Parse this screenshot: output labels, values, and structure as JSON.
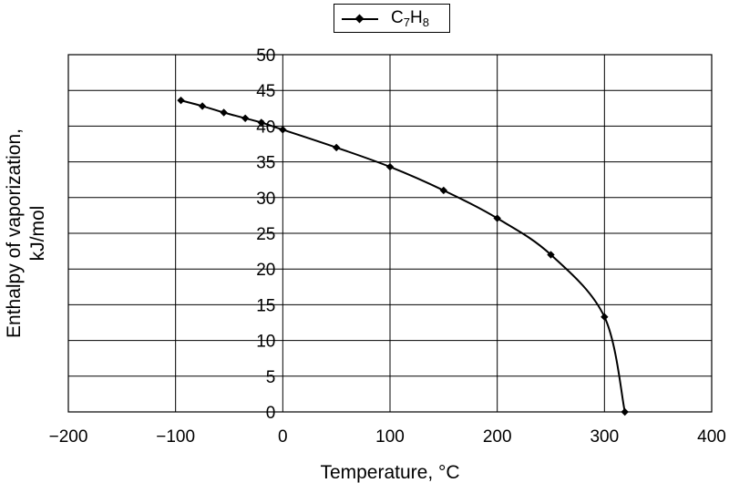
{
  "chart_data": {
    "type": "line",
    "title": "",
    "xlabel": "Temperature, °C",
    "ylabel_line1": "Enthalpy of vaporization,",
    "ylabel_line2": "kJ/mol",
    "xlim": [
      -200,
      400
    ],
    "ylim": [
      0,
      50
    ],
    "x_ticks": [
      -200,
      -100,
      0,
      100,
      200,
      300,
      400
    ],
    "x_tick_labels": [
      "−200",
      "−100",
      "0",
      "100",
      "200",
      "300",
      "400"
    ],
    "y_ticks": [
      0,
      5,
      10,
      15,
      20,
      25,
      30,
      35,
      40,
      45,
      50
    ],
    "grid": true,
    "legend_position": "top-center",
    "series": [
      {
        "name": "C7H8",
        "x": [
          -95,
          -75,
          -55,
          -35,
          -20,
          0,
          50,
          100,
          150,
          200,
          250,
          300,
          319
        ],
        "y": [
          43.6,
          42.8,
          41.9,
          41.1,
          40.5,
          39.5,
          37.0,
          34.3,
          31.0,
          27.1,
          22.0,
          13.3,
          0.0
        ]
      }
    ],
    "legend": {
      "formula_base_1": "C",
      "formula_sub_1": "7",
      "formula_base_2": "H",
      "formula_sub_2": "8"
    },
    "colors": {
      "line": "#000000",
      "grid": "#000000",
      "background": "#ffffff"
    }
  }
}
